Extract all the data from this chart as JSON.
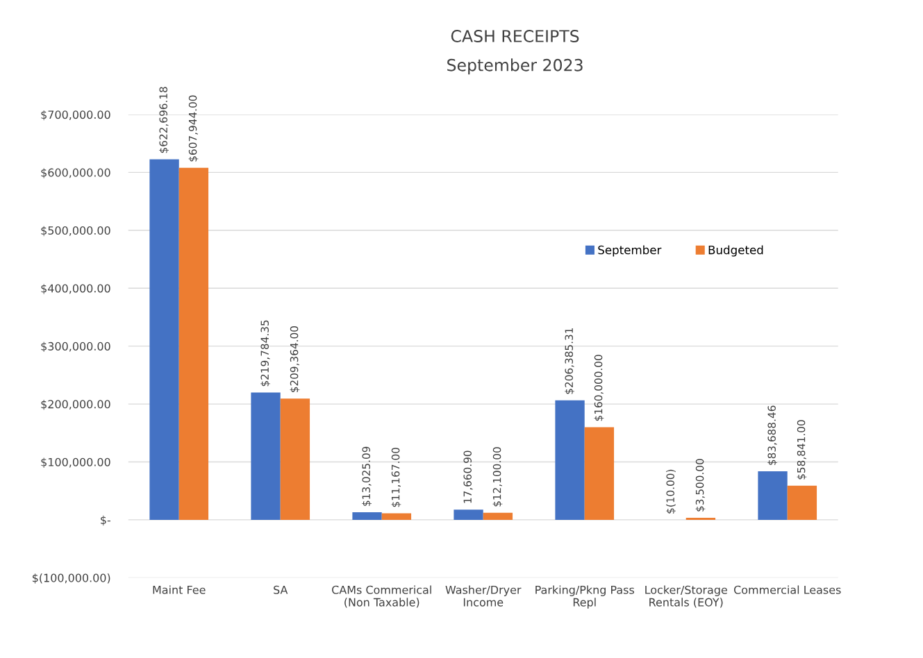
{
  "chart_data": {
    "type": "bar",
    "title": "CASH RECEIPTS",
    "subtitle": "September 2023",
    "categories": [
      "Maint Fee",
      "SA",
      "CAMs Commerical\n(Non Taxable)",
      "Washer/Dryer\nIncome",
      "Parking/Pkng Pass\nRepl",
      "Locker/Storage\nRentals (EOY)",
      "Commercial Leases"
    ],
    "series": [
      {
        "name": "September",
        "color": "#4472c4",
        "values": [
          622696.18,
          219784.35,
          13025.09,
          17660.9,
          206385.31,
          -10.0,
          83688.46
        ],
        "value_labels": [
          "$622,696.18",
          "$219,784.35",
          "$13,025.09",
          "17,660.90",
          "$206,385.31",
          "$(10.00)",
          "$83,688.46"
        ]
      },
      {
        "name": "Budgeted",
        "color": "#ed7d31",
        "values": [
          607944.0,
          209364.0,
          11167.0,
          12100.0,
          160000.0,
          3500.0,
          58841.0
        ],
        "value_labels": [
          "$607,944.00",
          "$209,364.00",
          "$11,167.00",
          "$12,100.00",
          "$160,000.00",
          "$3,500.00",
          "$58,841.00"
        ]
      }
    ],
    "ylim": [
      -100000,
      700000
    ],
    "yticks": [
      {
        "value": -100000,
        "label": "$(100,000.00)"
      },
      {
        "value": 0,
        "label": "$-"
      },
      {
        "value": 100000,
        "label": "$100,000.00"
      },
      {
        "value": 200000,
        "label": "$200,000.00"
      },
      {
        "value": 300000,
        "label": "$300,000.00"
      },
      {
        "value": 400000,
        "label": "$400,000.00"
      },
      {
        "value": 500000,
        "label": "$500,000.00"
      },
      {
        "value": 600000,
        "label": "$600,000.00"
      },
      {
        "value": 700000,
        "label": "$700,000.00"
      }
    ],
    "grid": "y",
    "legend": "top right"
  }
}
